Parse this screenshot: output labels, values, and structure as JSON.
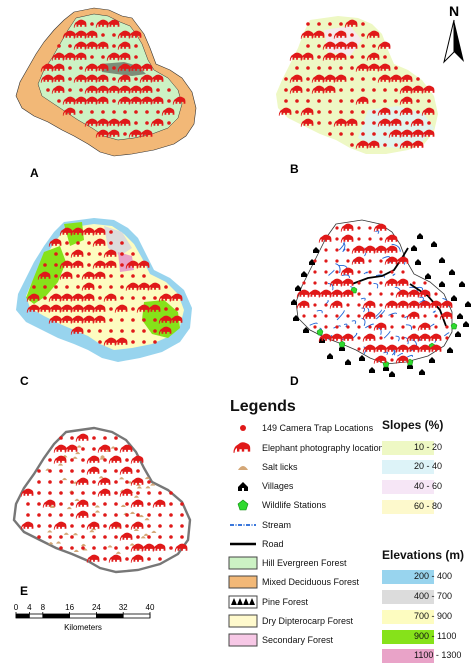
{
  "panels": [
    {
      "id": "A",
      "label": "A"
    },
    {
      "id": "B",
      "label": "B"
    },
    {
      "id": "C",
      "label": "C"
    },
    {
      "id": "D",
      "label": "D"
    },
    {
      "id": "E",
      "label": "E"
    }
  ],
  "north_arrow": {
    "label": "N"
  },
  "legend": {
    "title": "Legends",
    "items": [
      {
        "label": "149 Camera Trap Locations",
        "symbol": "red-dot"
      },
      {
        "label": "Elephant photography locations",
        "symbol": "elephant"
      },
      {
        "label": "Salt licks",
        "symbol": "salt-lick"
      },
      {
        "label": "Villages",
        "symbol": "village"
      },
      {
        "label": "Wildlife Stations",
        "symbol": "pentagon"
      },
      {
        "label": "Stream",
        "symbol": "stream-line"
      },
      {
        "label": "Road",
        "symbol": "road-line"
      },
      {
        "label": "Hill Evergreen Forest",
        "symbol": "swatch",
        "color": "#ccf2c4"
      },
      {
        "label": "Mixed Deciduous Forest",
        "symbol": "swatch",
        "color": "#f2b877"
      },
      {
        "label": "Pine Forest",
        "symbol": "pine"
      },
      {
        "label": "Dry Dipterocarp Forest",
        "symbol": "swatch",
        "color": "#fffacd"
      },
      {
        "label": "Secondary Forest",
        "symbol": "swatch",
        "color": "#f7c8e6"
      }
    ]
  },
  "slopes": {
    "title": "Slopes (%)",
    "classes": [
      {
        "label": "10 - 20",
        "color": "#eef8c4"
      },
      {
        "label": "20 - 40",
        "color": "#ddf3f8"
      },
      {
        "label": "40 - 60",
        "color": "#f6e6f6"
      },
      {
        "label": "60 - 80",
        "color": "#fdf9cc"
      }
    ]
  },
  "elevations": {
    "title": "Elevations (m)",
    "classes": [
      {
        "label": "200 - 400",
        "color": "#98d4ee"
      },
      {
        "label": "400 - 700",
        "color": "#dcdcdc"
      },
      {
        "label": "700 - 900",
        "color": "#fdfcc0"
      },
      {
        "label": "900 - 1100",
        "color": "#86e21a"
      },
      {
        "label": "1100 - 1300",
        "color": "#e9a3c8"
      }
    ]
  },
  "scale": {
    "ticks": [
      "0",
      "4",
      "8",
      "16",
      "24",
      "32",
      "40"
    ],
    "tick_values": [
      0,
      4,
      8,
      16,
      24,
      32,
      40
    ],
    "unit": "Kilometers"
  }
}
